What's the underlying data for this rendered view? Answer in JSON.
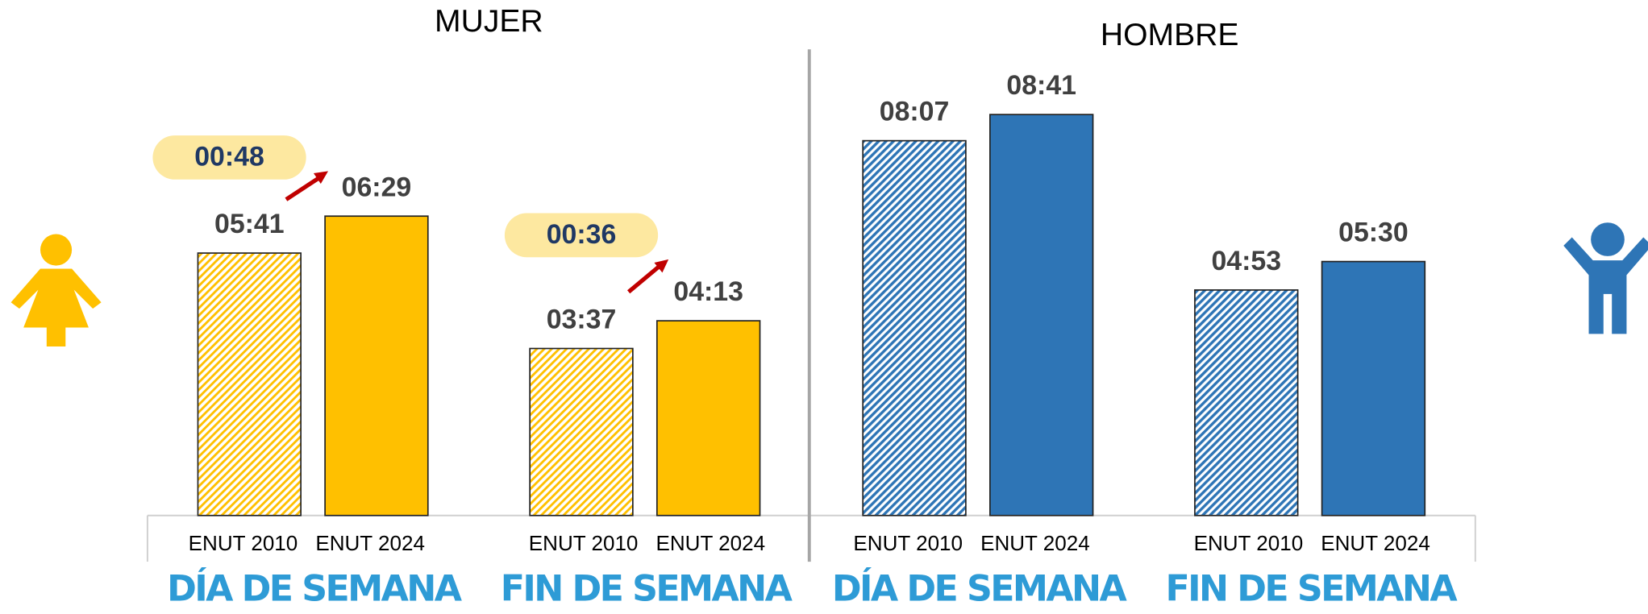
{
  "chart_data": [
    {
      "type": "bar",
      "title": "MUJER",
      "categories": [
        "DÍA DE SEMANA",
        "FIN DE SEMANA"
      ],
      "series": [
        {
          "name": "ENUT 2010",
          "color": "#ffc000",
          "pattern": "hatch",
          "values": [
            341,
            217
          ],
          "value_labels": [
            "05:41",
            "03:37"
          ]
        },
        {
          "name": "ENUT 2024",
          "color": "#ffc000",
          "pattern": "solid",
          "values": [
            389,
            253
          ],
          "value_labels": [
            "06:29",
            "04:13"
          ]
        }
      ],
      "differences": {
        "values": [
          48,
          36
        ],
        "value_labels": [
          "00:48",
          "00:36"
        ]
      }
    },
    {
      "type": "bar",
      "title": "HOMBRE",
      "categories": [
        "DÍA DE SEMANA",
        "FIN DE SEMANA"
      ],
      "series": [
        {
          "name": "ENUT 2010",
          "color": "#2e75b6",
          "pattern": "hatch",
          "values": [
            487,
            293
          ],
          "value_labels": [
            "08:07",
            "04:53"
          ]
        },
        {
          "name": "ENUT 2024",
          "color": "#2e75b6",
          "pattern": "solid",
          "values": [
            521,
            330
          ],
          "value_labels": [
            "08:41",
            "05:30"
          ]
        }
      ]
    }
  ]
}
